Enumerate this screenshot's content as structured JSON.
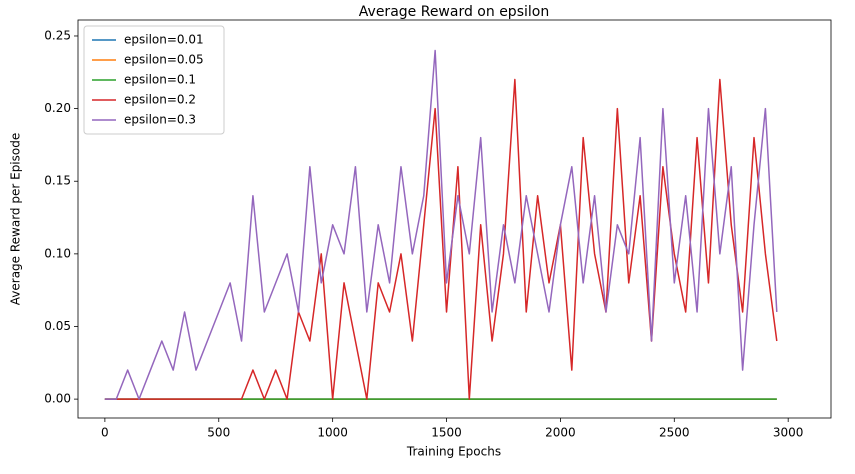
{
  "chart_data": {
    "type": "line",
    "title": "Average Reward on epsilon",
    "x_label": "Training Epochs",
    "y_label": "Average Reward per Episode",
    "x": [
      0,
      50,
      100,
      150,
      200,
      250,
      300,
      350,
      400,
      450,
      500,
      550,
      600,
      650,
      700,
      750,
      800,
      850,
      900,
      950,
      1000,
      1050,
      1100,
      1150,
      1200,
      1250,
      1300,
      1350,
      1400,
      1450,
      1500,
      1550,
      1600,
      1650,
      1700,
      1750,
      1800,
      1850,
      1900,
      1950,
      2000,
      2050,
      2100,
      2150,
      2200,
      2250,
      2300,
      2350,
      2400,
      2450,
      2500,
      2550,
      2600,
      2650,
      2700,
      2750,
      2800,
      2850,
      2900,
      2950
    ],
    "series": [
      {
        "name": "epsilon=0.01",
        "color": "#1f77b4",
        "values": [
          0,
          0,
          0,
          0,
          0,
          0,
          0,
          0,
          0,
          0,
          0,
          0,
          0,
          0,
          0,
          0,
          0,
          0,
          0,
          0,
          0,
          0,
          0,
          0,
          0,
          0,
          0,
          0,
          0,
          0,
          0,
          0,
          0,
          0,
          0,
          0,
          0,
          0,
          0,
          0,
          0,
          0,
          0,
          0,
          0,
          0,
          0,
          0,
          0,
          0,
          0,
          0,
          0,
          0,
          0,
          0,
          0,
          0,
          0,
          0
        ]
      },
      {
        "name": "epsilon=0.05",
        "color": "#ff7f0e",
        "values": [
          0,
          0,
          0,
          0,
          0,
          0,
          0,
          0,
          0,
          0,
          0,
          0,
          0,
          0,
          0,
          0,
          0,
          0,
          0,
          0,
          0,
          0,
          0,
          0,
          0,
          0,
          0,
          0,
          0,
          0,
          0,
          0,
          0,
          0,
          0,
          0,
          0,
          0,
          0,
          0,
          0,
          0,
          0,
          0,
          0,
          0,
          0,
          0,
          0,
          0,
          0,
          0,
          0,
          0,
          0,
          0,
          0,
          0,
          0,
          0
        ]
      },
      {
        "name": "epsilon=0.1",
        "color": "#2ca02c",
        "values": [
          0,
          0,
          0,
          0,
          0,
          0,
          0,
          0,
          0,
          0,
          0,
          0,
          0,
          0,
          0,
          0,
          0,
          0,
          0,
          0,
          0,
          0,
          0,
          0,
          0,
          0,
          0,
          0,
          0,
          0,
          0,
          0,
          0,
          0,
          0,
          0,
          0,
          0,
          0,
          0,
          0,
          0,
          0,
          0,
          0,
          0,
          0,
          0,
          0,
          0,
          0,
          0,
          0,
          0,
          0,
          0,
          0,
          0,
          0,
          0
        ]
      },
      {
        "name": "epsilon=0.2",
        "color": "#d62728",
        "values": [
          0,
          0,
          0,
          0,
          0,
          0,
          0,
          0,
          0,
          0,
          0,
          0,
          0,
          0.02,
          0,
          0.02,
          0,
          0.06,
          0.04,
          0.1,
          0,
          0.08,
          0.04,
          0,
          0.08,
          0.06,
          0.1,
          0.04,
          0.12,
          0.2,
          0.06,
          0.16,
          0,
          0.12,
          0.04,
          0.1,
          0.22,
          0.06,
          0.14,
          0.08,
          0.12,
          0.02,
          0.18,
          0.1,
          0.06,
          0.2,
          0.08,
          0.14,
          0.04,
          0.16,
          0.1,
          0.06,
          0.18,
          0.08,
          0.22,
          0.12,
          0.06,
          0.18,
          0.1,
          0.04
        ]
      },
      {
        "name": "epsilon=0.3",
        "color": "#9467bd",
        "values": [
          0,
          0,
          0.02,
          0,
          0.02,
          0.04,
          0.02,
          0.06,
          0.02,
          0.04,
          0.06,
          0.08,
          0.04,
          0.14,
          0.06,
          0.08,
          0.1,
          0.06,
          0.16,
          0.08,
          0.12,
          0.1,
          0.16,
          0.06,
          0.12,
          0.08,
          0.16,
          0.1,
          0.14,
          0.24,
          0.08,
          0.14,
          0.1,
          0.18,
          0.06,
          0.12,
          0.08,
          0.14,
          0.1,
          0.06,
          0.12,
          0.16,
          0.08,
          0.14,
          0.06,
          0.12,
          0.1,
          0.18,
          0.04,
          0.2,
          0.08,
          0.14,
          0.06,
          0.2,
          0.1,
          0.16,
          0.02,
          0.12,
          0.2,
          0.06
        ]
      }
    ],
    "xlim": [
      -118,
      3188
    ],
    "ylim": [
      -0.013,
      0.261
    ],
    "xticks": [
      0,
      500,
      1000,
      1500,
      2000,
      2500,
      3000
    ],
    "yticks": [
      {
        "value": 0,
        "label": "0.00"
      },
      {
        "value": 0.05,
        "label": "0.05"
      },
      {
        "value": 0.1,
        "label": "0.10"
      },
      {
        "value": 0.15,
        "label": "0.15"
      },
      {
        "value": 0.2,
        "label": "0.20"
      },
      {
        "value": 0.25,
        "label": "0.25"
      }
    ],
    "legend": "upper left"
  }
}
